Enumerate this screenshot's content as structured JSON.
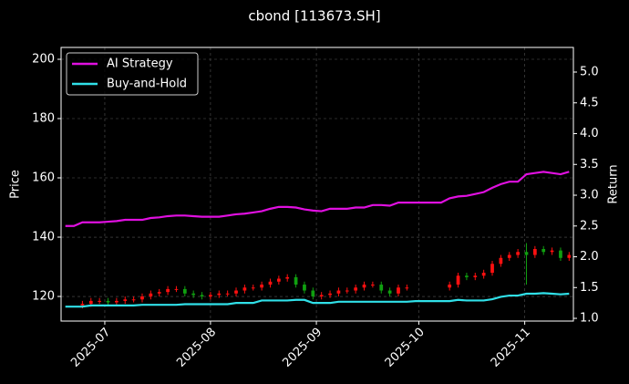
{
  "chart_data": {
    "type": "candlestick",
    "title": "cbond [113673.SH]",
    "y_label": "Price",
    "y2_label": "Return",
    "categories": [
      null,
      null,
      null,
      null,
      null,
      null,
      null,
      null,
      null,
      null,
      null,
      null,
      null,
      null,
      null,
      null,
      null,
      null,
      null,
      null,
      null,
      null,
      null,
      null,
      null,
      null,
      null,
      null,
      null,
      null,
      null,
      null,
      null,
      null,
      null,
      null,
      null,
      null,
      null,
      null,
      null,
      null,
      null,
      null,
      null,
      null,
      null,
      null,
      null,
      null,
      null,
      null,
      null,
      null,
      null,
      null,
      null,
      null,
      null,
      null
    ],
    "open": [
      null,
      null,
      117,
      117.5,
      118.5,
      118.5,
      118,
      118.5,
      119,
      119,
      120,
      121,
      121.5,
      122.5,
      122.5,
      121,
      120.5,
      120,
      120.5,
      121,
      121,
      122,
      123,
      123,
      124,
      125,
      126,
      126.5,
      124,
      122,
      120,
      120.5,
      121,
      122,
      122,
      123,
      124,
      124,
      122,
      121,
      123,
      null,
      null,
      null,
      null,
      123,
      124,
      127,
      126.5,
      127,
      128,
      131,
      133,
      134,
      135,
      134,
      136,
      135,
      135.5,
      133
    ],
    "high": [
      null,
      null,
      118.5,
      119.5,
      119.5,
      119.5,
      119.5,
      120,
      120,
      121,
      122,
      122.5,
      123.5,
      123.5,
      123.5,
      122,
      121.5,
      121.5,
      122,
      122,
      123,
      124,
      124,
      125,
      126,
      127,
      127.5,
      127.5,
      125,
      123,
      121.5,
      122,
      123,
      123,
      124,
      125,
      125,
      125,
      123,
      124,
      124,
      null,
      null,
      null,
      null,
      125,
      128,
      128,
      128,
      129,
      132,
      134,
      135,
      136,
      138,
      137,
      137,
      136.5,
      136.5,
      135
    ],
    "low": [
      null,
      null,
      116,
      116.5,
      117.5,
      117,
      117,
      117.5,
      118,
      118,
      119,
      120,
      120.5,
      121.5,
      120,
      119.5,
      119,
      119,
      119.5,
      120,
      120,
      121,
      122,
      122,
      123,
      124,
      125,
      123,
      121,
      119,
      119,
      119.5,
      120,
      121,
      121,
      122,
      123,
      121,
      120,
      120,
      122,
      null,
      null,
      null,
      null,
      122,
      123,
      125.5,
      125.5,
      126,
      127,
      130,
      132,
      133,
      124,
      133,
      134,
      134,
      132,
      132
    ],
    "close": [
      null,
      null,
      117.5,
      118.5,
      118.5,
      118,
      118.5,
      119,
      119,
      120,
      121,
      121.5,
      122.5,
      122.5,
      121,
      120.5,
      120,
      120.5,
      121,
      121,
      122,
      123,
      123,
      124,
      125,
      126,
      126.5,
      124,
      122,
      120,
      120.5,
      121,
      122,
      122,
      123,
      124,
      124,
      122,
      121,
      123,
      123,
      null,
      null,
      null,
      null,
      124,
      127,
      126.5,
      127,
      128,
      131,
      133,
      134,
      135,
      134,
      136,
      135,
      135.5,
      133,
      134
    ],
    "up_color": "#ff1010",
    "down_color": "#10a010",
    "series": [
      {
        "name": "AI Strategy",
        "color": "#e010e0",
        "axis": "y2",
        "values": [
          2.5,
          2.5,
          2.56,
          2.56,
          2.56,
          2.57,
          2.58,
          2.6,
          2.6,
          2.6,
          2.63,
          2.64,
          2.66,
          2.67,
          2.67,
          2.66,
          2.65,
          2.65,
          2.65,
          2.67,
          2.69,
          2.7,
          2.72,
          2.74,
          2.78,
          2.81,
          2.81,
          2.8,
          2.77,
          2.75,
          2.74,
          2.78,
          2.78,
          2.78,
          2.8,
          2.8,
          2.84,
          2.84,
          2.83,
          2.88,
          2.88,
          2.88,
          2.88,
          2.88,
          2.88,
          2.95,
          2.98,
          2.99,
          3.02,
          3.05,
          3.12,
          3.18,
          3.22,
          3.22,
          3.34,
          3.36,
          3.38,
          3.36,
          3.34,
          3.38
        ]
      },
      {
        "name": "Buy-and-Hold",
        "color": "#30e0e8",
        "axis": "y2",
        "values": [
          1.19,
          1.19,
          1.19,
          1.21,
          1.21,
          1.21,
          1.21,
          1.21,
          1.21,
          1.22,
          1.22,
          1.22,
          1.22,
          1.22,
          1.23,
          1.23,
          1.23,
          1.23,
          1.23,
          1.23,
          1.25,
          1.25,
          1.25,
          1.29,
          1.29,
          1.29,
          1.29,
          1.3,
          1.3,
          1.25,
          1.25,
          1.25,
          1.27,
          1.27,
          1.27,
          1.27,
          1.27,
          1.27,
          1.27,
          1.27,
          1.27,
          1.28,
          1.28,
          1.28,
          1.28,
          1.28,
          1.3,
          1.29,
          1.29,
          1.29,
          1.31,
          1.35,
          1.37,
          1.37,
          1.4,
          1.4,
          1.41,
          1.4,
          1.39,
          1.4
        ]
      }
    ],
    "ylim": [
      111.7,
      204
    ],
    "yticks": [
      120,
      140,
      160,
      180,
      200
    ],
    "y2lim": [
      0.956,
      5.4
    ],
    "y2ticks": [
      {
        "value": 1,
        "label": "1.0"
      },
      1.5,
      {
        "value": 2,
        "label": "2.0"
      },
      2.5,
      {
        "value": 3,
        "label": "3.0"
      },
      3.5,
      {
        "value": 4,
        "label": "4.0"
      },
      4.5,
      {
        "value": 5,
        "label": "5.0"
      }
    ],
    "xticks": [
      {
        "value": 4.62,
        "label": "2025-07"
      },
      {
        "value": 17.0,
        "label": "2025-08"
      },
      {
        "value": 29.4,
        "label": "2025-09"
      },
      {
        "value": 41.4,
        "label": "2025-10"
      },
      {
        "value": 53.8,
        "label": "2025-11"
      }
    ],
    "grid": true,
    "legend": "upper left"
  }
}
